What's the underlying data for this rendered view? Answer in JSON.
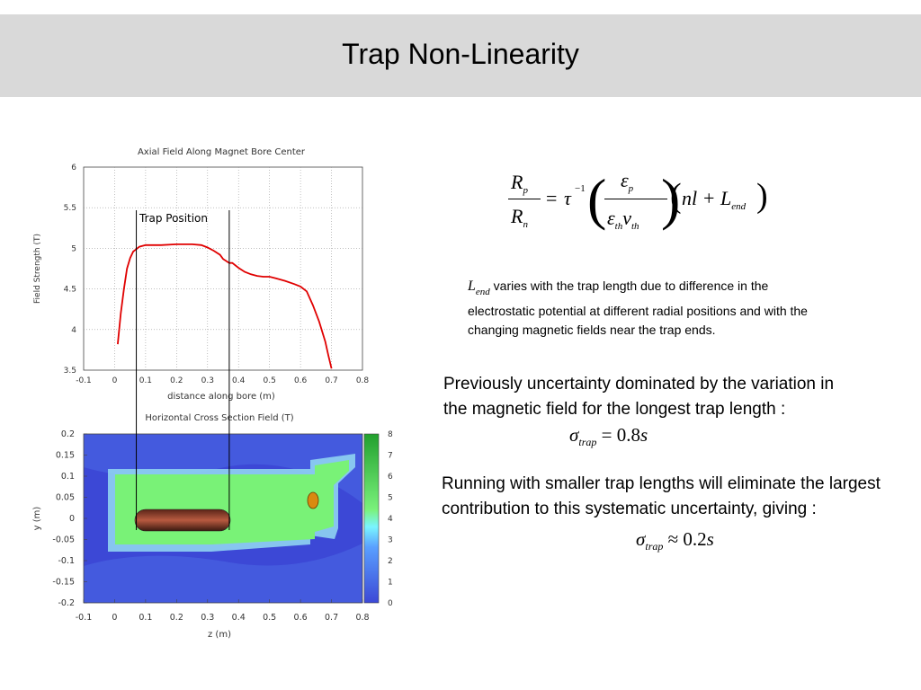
{
  "slide": {
    "title": "Trap Non-Linearity",
    "note_symbol": "L",
    "note_subscript": "end",
    "note_text": " varies with the trap length due to difference in the electrostatic potential at different radial positions and with the changing magnetic fields near the trap ends.",
    "paragraph1": "Previously uncertainty dominated by the variation in the magnetic field for the longest trap length :",
    "paragraph2": "Running with smaller trap lengths will eliminate the largest contribution to this systematic uncertainty, giving :",
    "sigma1": {
      "symbol": "σ",
      "sub": "trap",
      "rel": "=",
      "value": "0.8",
      "unit": "s"
    },
    "sigma2": {
      "symbol": "σ",
      "sub": "trap",
      "rel": "≈",
      "value": "0.2",
      "unit": "s"
    },
    "formula": {
      "lhs_num": "R",
      "lhs_num_sub": "p",
      "lhs_den": "R",
      "lhs_den_sub": "n",
      "eq": "=",
      "tau": "τ",
      "tau_exp": "−1",
      "frac_num": "ε",
      "frac_num_sub": "p",
      "frac_den_1": "ε",
      "frac_den_1_sub": "th",
      "frac_den_2": "ν",
      "frac_den_2_sub": "th",
      "paren": "nl + L",
      "paren_sub": "end"
    }
  },
  "chart_data": [
    {
      "type": "line",
      "title": "Axial Field Along Magnet Bore Center",
      "xlabel": "distance along bore (m)",
      "ylabel": "Field Strength (T)",
      "xlim": [
        -0.1,
        0.8
      ],
      "ylim": [
        3.5,
        6
      ],
      "xticks": [
        "-0.1",
        "0",
        "0.1",
        "0.2",
        "0.3",
        "0.4",
        "0.5",
        "0.6",
        "0.7",
        "0.8"
      ],
      "yticks": [
        "3.5",
        "4",
        "4.5",
        "5",
        "5.5",
        "6"
      ],
      "grid": true,
      "annotation": "Trap Position",
      "trap_lines_x": [
        0.07,
        0.37
      ],
      "series": [
        {
          "color": "#e00000",
          "x": [
            0.01,
            0.02,
            0.03,
            0.04,
            0.05,
            0.06,
            0.07,
            0.08,
            0.1,
            0.12,
            0.15,
            0.2,
            0.25,
            0.28,
            0.3,
            0.32,
            0.34,
            0.35,
            0.37,
            0.38,
            0.4,
            0.42,
            0.44,
            0.46,
            0.48,
            0.5,
            0.52,
            0.55,
            0.58,
            0.6,
            0.62,
            0.64,
            0.66,
            0.68,
            0.69,
            0.7
          ],
          "y": [
            3.82,
            4.2,
            4.5,
            4.75,
            4.88,
            4.96,
            4.99,
            5.02,
            5.04,
            5.04,
            5.04,
            5.05,
            5.05,
            5.04,
            5.01,
            4.97,
            4.92,
            4.87,
            4.82,
            4.82,
            4.76,
            4.71,
            4.68,
            4.66,
            4.65,
            4.65,
            4.63,
            4.6,
            4.56,
            4.53,
            4.47,
            4.3,
            4.1,
            3.85,
            3.68,
            3.52
          ]
        }
      ]
    },
    {
      "type": "heatmap",
      "title": "Horizontal Cross Section Field (T)",
      "xlabel": "z (m)",
      "ylabel": "y (m)",
      "xlim": [
        -0.1,
        0.8
      ],
      "ylim": [
        -0.2,
        0.2
      ],
      "xticks": [
        "-0.1",
        "0",
        "0.1",
        "0.2",
        "0.3",
        "0.4",
        "0.5",
        "0.6",
        "0.7",
        "0.8"
      ],
      "yticks": [
        "0.2",
        "0.15",
        "0.1",
        "0.05",
        "0",
        "-0.05",
        "-0.1",
        "-0.15",
        "-0.2"
      ],
      "colorbar_ticks": [
        "8",
        "7",
        "6",
        "5",
        "4",
        "3",
        "2",
        "1",
        "0"
      ],
      "colorbar_range": [
        0,
        8
      ],
      "colors": {
        "background": "#3c48d6",
        "field": "#79f277",
        "trap": "#8c3a2a",
        "fringe": "#9ad0f5"
      }
    }
  ]
}
